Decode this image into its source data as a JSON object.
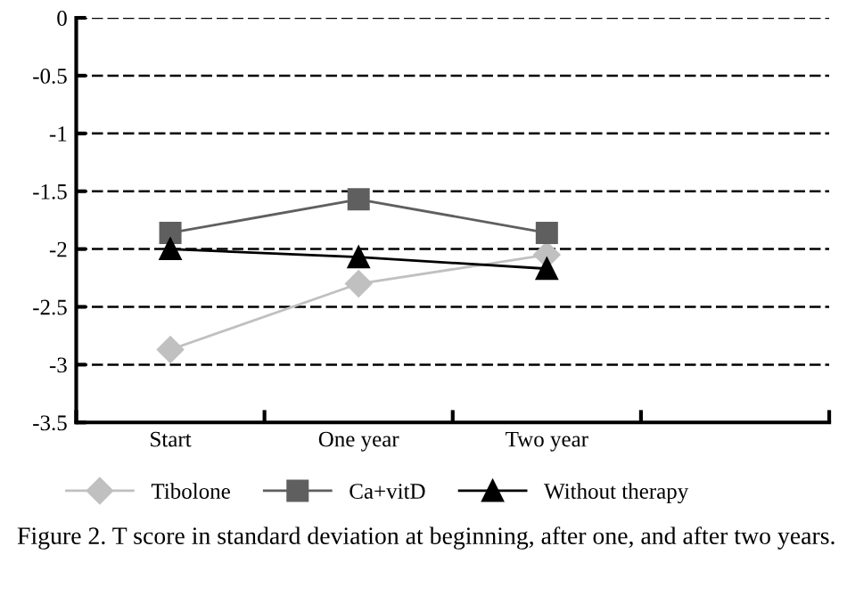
{
  "chart_data": {
    "type": "line",
    "categories": [
      "Start",
      "One year",
      "Two year",
      null
    ],
    "series": [
      {
        "name": "Tibolone",
        "color": "#c0c0c0",
        "marker": "diamond",
        "values": [
          -2.87,
          -2.3,
          -2.05,
          null
        ]
      },
      {
        "name": "Ca+vitD",
        "color": "#5f5f5f",
        "marker": "square",
        "values": [
          -1.86,
          -1.57,
          -1.86,
          null
        ]
      },
      {
        "name": "Without therapy",
        "color": "#000000",
        "marker": "triangle",
        "values": [
          -2.0,
          -2.07,
          -2.17,
          null
        ]
      }
    ],
    "ylim": [
      -3.5,
      0
    ],
    "yticks": [
      -3.5,
      -3,
      -2.5,
      -2,
      -1.5,
      -1,
      -0.5,
      0
    ],
    "grid": "y",
    "legend": "bottom",
    "line_style": "solid",
    "annotations": [
      "Figure 2. T score in standard deviation at beginning, after one, and after two years."
    ]
  }
}
